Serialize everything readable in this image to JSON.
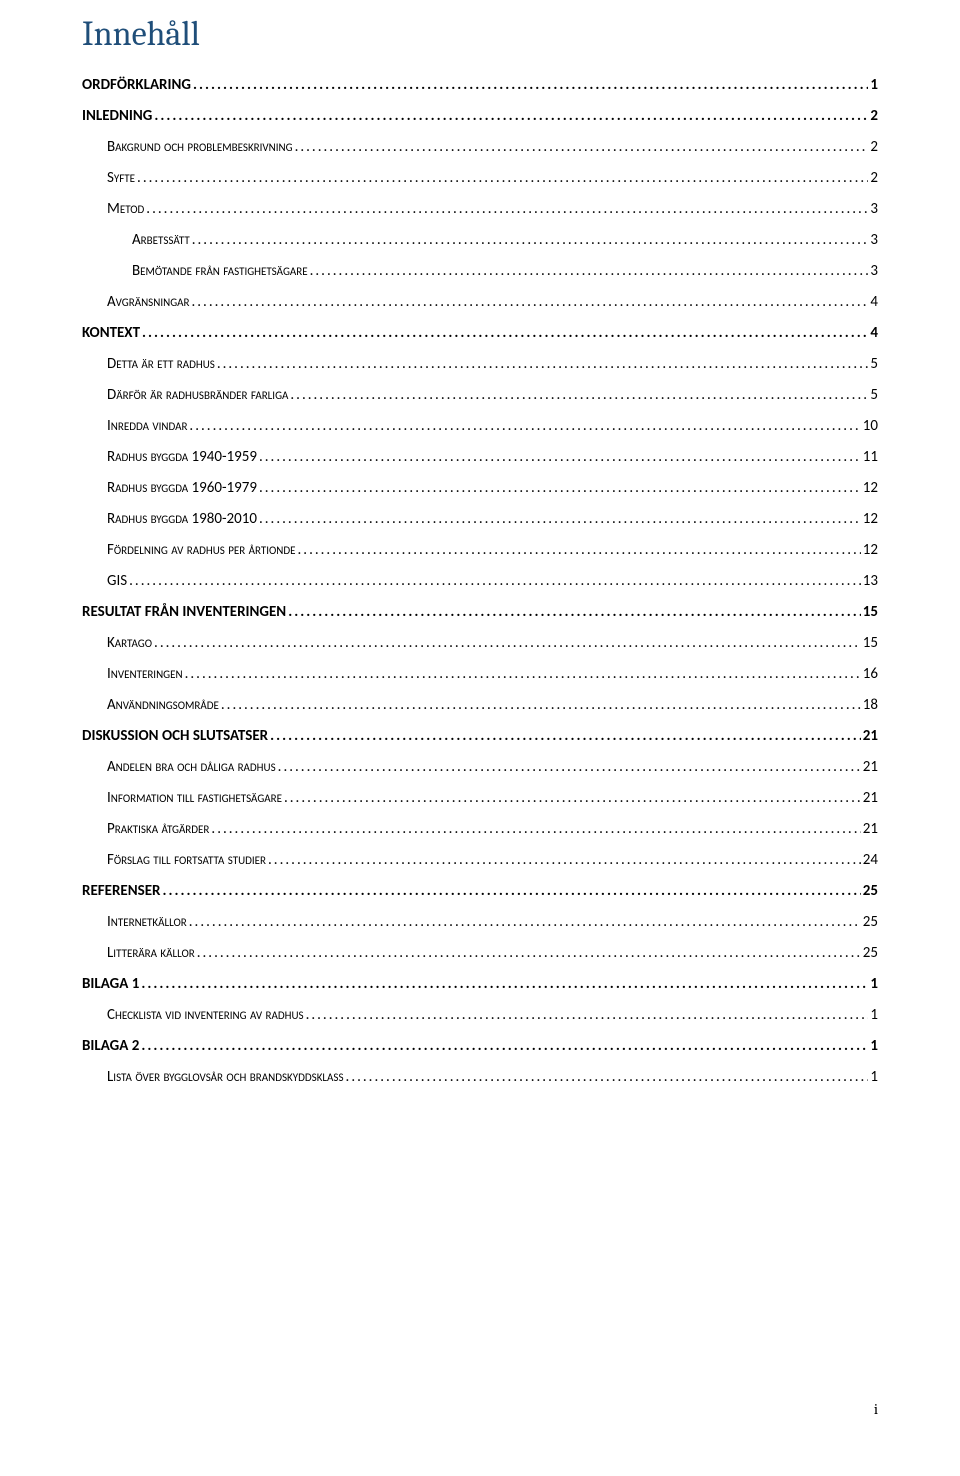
{
  "title": "Innehåll",
  "pageNumber": "i",
  "entries": [
    {
      "level": 0,
      "label": "ORDFÖRKLARING",
      "page": "1"
    },
    {
      "level": 0,
      "label": "INLEDNING",
      "page": "2"
    },
    {
      "level": 1,
      "label": "Bakgrund och problembeskrivning",
      "page": "2"
    },
    {
      "level": 1,
      "label": "Syfte",
      "page": "2"
    },
    {
      "level": 1,
      "label": "Metod",
      "page": "3"
    },
    {
      "level": 2,
      "label": "Arbetssätt",
      "page": "3"
    },
    {
      "level": 2,
      "label": "Bemötande från fastighetsägare",
      "page": "3"
    },
    {
      "level": 1,
      "label": "Avgränsningar",
      "page": "4"
    },
    {
      "level": 0,
      "label": "KONTEXT",
      "page": "4"
    },
    {
      "level": 1,
      "label": "Detta är ett radhus",
      "page": "5"
    },
    {
      "level": 1,
      "label": "Därför är radhusbränder farliga",
      "page": "5"
    },
    {
      "level": 1,
      "label": "Inredda vindar",
      "page": "10"
    },
    {
      "level": 1,
      "label": "Radhus byggda 1940-1959",
      "page": "11"
    },
    {
      "level": 1,
      "label": "Radhus byggda 1960-1979",
      "page": "12"
    },
    {
      "level": 1,
      "label": "Radhus byggda 1980-2010",
      "page": "12"
    },
    {
      "level": 1,
      "label": "Fördelning av radhus per årtionde",
      "page": "12"
    },
    {
      "level": 1,
      "label": "GIS",
      "page": "13"
    },
    {
      "level": 0,
      "label": "RESULTAT FRÅN INVENTERINGEN",
      "page": "15"
    },
    {
      "level": 1,
      "label": "Kartago",
      "page": "15"
    },
    {
      "level": 1,
      "label": "Inventeringen",
      "page": "16"
    },
    {
      "level": 1,
      "label": "Användningsområde",
      "page": "18"
    },
    {
      "level": 0,
      "label": "DISKUSSION OCH SLUTSATSER",
      "page": "21"
    },
    {
      "level": 1,
      "label": "Andelen bra och dåliga radhus",
      "page": "21"
    },
    {
      "level": 1,
      "label": "Information till fastighetsägare",
      "page": "21"
    },
    {
      "level": 1,
      "label": "Praktiska åtgärder",
      "page": "21"
    },
    {
      "level": 1,
      "label": "Förslag till fortsatta studier",
      "page": "24"
    },
    {
      "level": 0,
      "label": "REFERENSER",
      "page": "25"
    },
    {
      "level": 1,
      "label": "Internetkällor",
      "page": "25"
    },
    {
      "level": 1,
      "label": "Litterära källor",
      "page": "25"
    },
    {
      "level": 0,
      "label": "BILAGA 1",
      "page": "1"
    },
    {
      "level": 1,
      "label": "Checklista vid inventering av radhus",
      "page": "1"
    },
    {
      "level": 0,
      "label": "BILAGA 2",
      "page": "1"
    },
    {
      "level": 1,
      "label": "Lista över bygglovsår och brandskyddsklass",
      "page": "1"
    }
  ]
}
